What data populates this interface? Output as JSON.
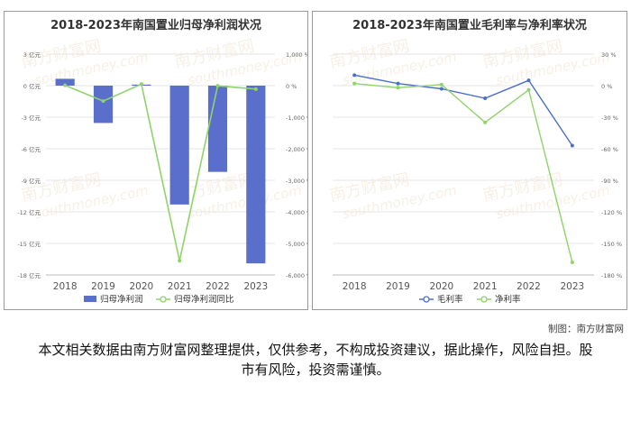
{
  "chart_data": [
    {
      "type": "bar",
      "title": "2018-2023年南国置业归母净利润状况",
      "categories": [
        "2018",
        "2019",
        "2020",
        "2021",
        "2022",
        "2023"
      ],
      "series": [
        {
          "name": "归母净利润",
          "axis": "left",
          "values": [
            0.65,
            -3.55,
            0.1,
            -11.3,
            -8.2,
            -16.9
          ],
          "color": "#5a6fcc"
        },
        {
          "name": "归母净利润同比",
          "axis": "right",
          "type": "line",
          "values": [
            10,
            -490,
            50,
            -5550,
            -5,
            -110
          ],
          "color": "#8fd36a"
        }
      ],
      "yleft": {
        "ticks": [
          "3 亿元",
          "0 亿元",
          "-3 亿元",
          "-6 亿元",
          "-9 亿元",
          "-12 亿元",
          "-15 亿元",
          "-18 亿元"
        ],
        "range": [
          -18,
          3
        ]
      },
      "yright": {
        "ticks": [
          "1,000 %",
          "0 %",
          "-1,000 %",
          "-2,000 %",
          "-3,000 %",
          "-4,000 %",
          "-5,000 %",
          "-6,000 %"
        ],
        "range": [
          -6000,
          1000
        ]
      },
      "legend": "bottom"
    },
    {
      "type": "line",
      "title": "2018-2023年南国置业毛利率与净利率状况",
      "categories": [
        "2018",
        "2019",
        "2020",
        "2021",
        "2022",
        "2023"
      ],
      "series": [
        {
          "name": "毛利率",
          "values": [
            10,
            2,
            -3,
            -12,
            5,
            -57
          ],
          "color": "#4a6fcc"
        },
        {
          "name": "净利率",
          "values": [
            2,
            -2,
            1,
            -35,
            -4,
            -168
          ],
          "color": "#8fd36a"
        }
      ],
      "yright": {
        "ticks": [
          "30 %",
          "0 %",
          "-30 %",
          "-60 %",
          "-90 %",
          "-120 %",
          "-150 %",
          "-180 %"
        ],
        "range": [
          -180,
          30
        ]
      },
      "legend": "bottom"
    }
  ],
  "watermark": {
    "cn": "南方财富网",
    "en": "southmoney.com"
  },
  "footer": {
    "credit": "制图：南方财富网",
    "disclaimer": "本文相关数据由南方财富网整理提供，仅供参考，不构成投资建议，据此操作，风险自担。股市有风险，投资需谨慎。"
  }
}
